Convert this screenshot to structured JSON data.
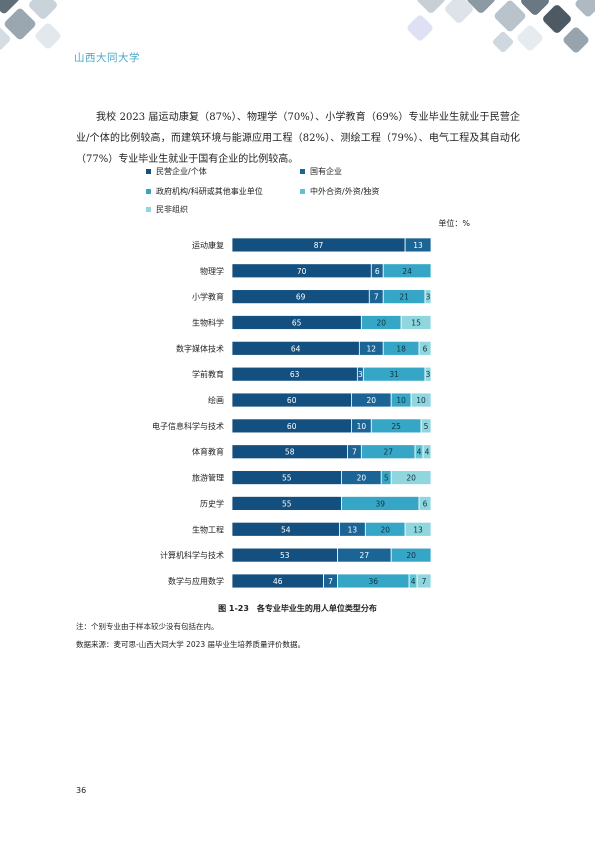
{
  "header": {
    "university": "山西大同大学"
  },
  "intro": "我校 2023 届运动康复（87%）、物理学（70%）、小学教育（69%）专业毕业生就业于民营企业/个体的比例较高，而建筑环境与能源应用工程（82%）、测绘工程（79%）、电气工程及其自动化（77%）专业毕业生就业于国有企业的比例较高。",
  "colors": {
    "民营企业/个体": "#14507f",
    "国有企业": "#1b6496",
    "政府机构/科研或其他事业单位": "#36a6c7",
    "中外合资/外资/独资": "#5cc3d4",
    "民非组织": "#8fd6de"
  },
  "chart_data": {
    "type": "bar",
    "orientation": "horizontal",
    "stacked": true,
    "unit_label": "单位：%",
    "legend_position": "top",
    "categories": [
      "运动康复",
      "物理学",
      "小学教育",
      "生物科学",
      "数字媒体技术",
      "学前教育",
      "绘画",
      "电子信息科学与技术",
      "体育教育",
      "旅游管理",
      "历史学",
      "生物工程",
      "计算机科学与技术",
      "数学与应用数学"
    ],
    "series": [
      {
        "name": "民营企业/个体",
        "values": [
          87,
          70,
          69,
          65,
          64,
          63,
          60,
          60,
          58,
          55,
          55,
          54,
          53,
          46
        ]
      },
      {
        "name": "国有企业",
        "values": [
          13,
          6,
          7,
          0,
          12,
          3,
          20,
          10,
          7,
          20,
          0,
          13,
          27,
          7
        ]
      },
      {
        "name": "政府机构/科研或其他事业单位",
        "values": [
          0,
          24,
          21,
          20,
          18,
          31,
          10,
          25,
          27,
          5,
          39,
          20,
          20,
          36
        ]
      },
      {
        "name": "中外合资/外资/独资",
        "values": [
          0,
          0,
          0,
          0,
          0,
          0,
          0,
          0,
          4,
          0,
          0,
          0,
          0,
          4
        ]
      },
      {
        "name": "民非组织",
        "values": [
          0,
          0,
          3,
          15,
          6,
          3,
          10,
          5,
          4,
          20,
          6,
          13,
          0,
          7
        ]
      }
    ],
    "xlim": [
      0,
      100
    ],
    "grid": false
  },
  "caption": "图 1-23　各专业毕业生的用人单位类型分布",
  "notes": {
    "note": "注：个别专业由于样本较少没有包括在内。",
    "source": "数据来源：麦可思-山西大同大学 2023 届毕业生培养质量评价数据。"
  },
  "page_number": "36"
}
